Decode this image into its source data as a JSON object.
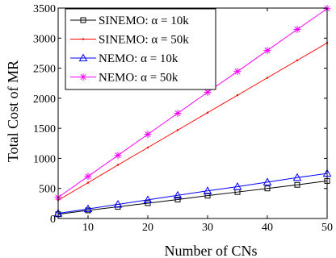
{
  "chart_data": {
    "type": "line",
    "xlabel": "Number of CNs",
    "ylabel": "Total Cost of MR",
    "xlim": [
      5,
      50
    ],
    "ylim": [
      0,
      3500
    ],
    "xticks": [
      10,
      20,
      30,
      40,
      50
    ],
    "yticks": [
      0,
      500,
      1000,
      1500,
      2000,
      2500,
      3000,
      3500
    ],
    "grid": false,
    "legend_position": "top-left",
    "x": [
      5,
      10,
      15,
      20,
      25,
      30,
      35,
      40,
      45,
      50
    ],
    "series": [
      {
        "name": "SINEMO: α = 10k",
        "color": "#000000",
        "marker": "square",
        "values": [
          70,
          135,
          195,
          255,
          315,
          380,
          440,
          500,
          560,
          625
        ]
      },
      {
        "name": "SINEMO: α = 50k",
        "color": "#ff0000",
        "marker": "dot",
        "values": [
          305,
          595,
          890,
          1180,
          1470,
          1760,
          2050,
          2340,
          2630,
          2920
        ]
      },
      {
        "name": "NEMO: α = 10k",
        "color": "#0000ff",
        "marker": "triangle",
        "values": [
          85,
          160,
          235,
          310,
          385,
          460,
          530,
          605,
          680,
          750
        ]
      },
      {
        "name": "NEMO: α = 50k",
        "color": "#ff00ff",
        "marker": "star",
        "values": [
          350,
          700,
          1050,
          1400,
          1750,
          2100,
          2445,
          2795,
          3145,
          3490
        ]
      }
    ]
  }
}
